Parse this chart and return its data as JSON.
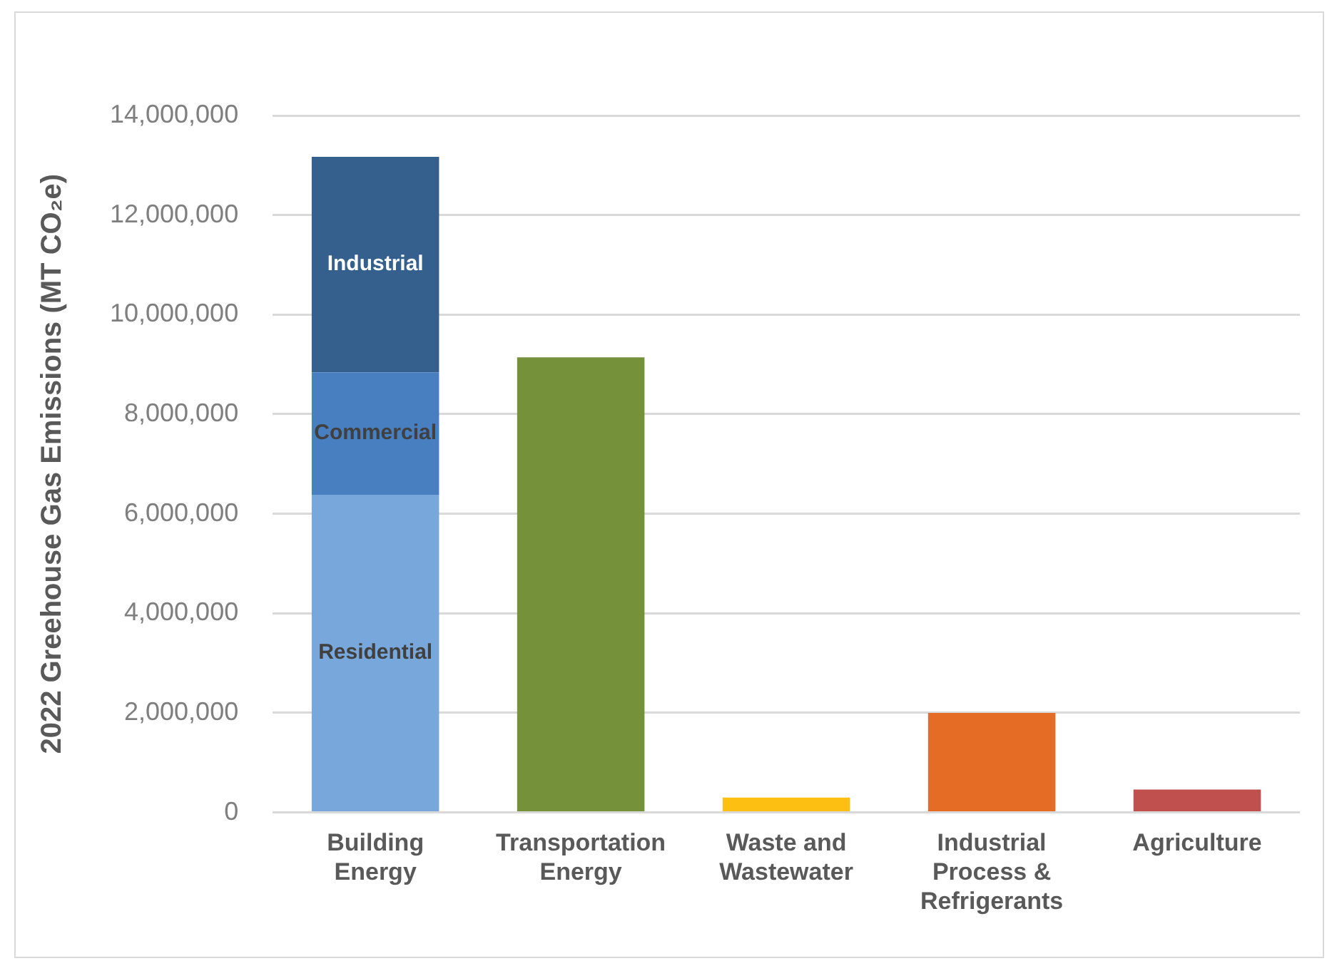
{
  "chart_data": {
    "type": "bar",
    "ylabel": "2022 Greehouse Gas Emissions (MT CO₂e)",
    "categories": [
      "Building Energy",
      "Transportation Energy",
      "Waste and Wastewater",
      "Industrial Process & Refrigerants",
      "Agriculture"
    ],
    "stacked": true,
    "series": [
      {
        "name": "Residential",
        "color": "#77a7db",
        "values": [
          6380000,
          null,
          null,
          null,
          null
        ]
      },
      {
        "name": "Commercial",
        "color": "#477fc0",
        "values": [
          2460000,
          null,
          null,
          null,
          null
        ]
      },
      {
        "name": "Industrial",
        "color": "#355f8c",
        "values": [
          4330000,
          null,
          null,
          null,
          null
        ]
      },
      {
        "colors": [
          "#75923a",
          "#75923a",
          "#fcbf12",
          "#e46c25",
          "#c0504d"
        ],
        "values": [
          null,
          9140000,
          300000,
          2000000,
          460000
        ]
      }
    ],
    "ylim": [
      0,
      14000000
    ],
    "yticks": [
      0,
      {
        "value": 2000000,
        "label": "2,000,000"
      },
      {
        "value": 4000000,
        "label": "4,000,000"
      },
      {
        "value": 6000000,
        "label": "6,000,000"
      },
      {
        "value": 8000000,
        "label": "8,000,000"
      },
      {
        "value": 10000000,
        "label": "10,000,000"
      },
      {
        "value": 12000000,
        "label": "12,000,000"
      },
      {
        "value": 14000000,
        "label": "14,000,000"
      }
    ],
    "grid": "y",
    "legend": false
  }
}
